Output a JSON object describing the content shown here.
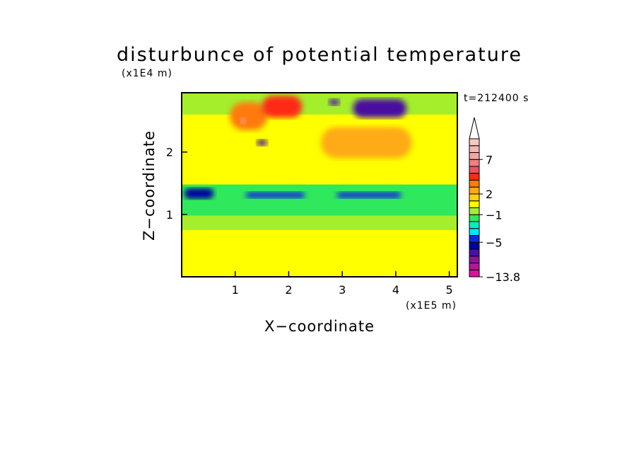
{
  "chart_data": {
    "type": "heatmap",
    "title": "disturbunce of potential temperature",
    "xlabel": "X−coordinate",
    "ylabel": "Z−coordinate",
    "x_unit": "(x1E5 m)",
    "y_unit": "(x1E4 m)",
    "time_label": "t=212400 s",
    "xlim": [
      0,
      5.15
    ],
    "ylim": [
      0,
      2.95
    ],
    "x_ticks": [
      {
        "value": 1,
        "label": "1"
      },
      {
        "value": 2,
        "label": "2"
      },
      {
        "value": 3,
        "label": "3"
      },
      {
        "value": 4,
        "label": "4"
      },
      {
        "value": 5,
        "label": "5"
      }
    ],
    "y_ticks": [
      {
        "value": 1,
        "label": "1"
      },
      {
        "value": 2,
        "label": "2"
      }
    ],
    "colorbar": {
      "levels": [
        -13.8,
        -11,
        -9,
        -7,
        -6,
        -5,
        -4,
        -3,
        -2,
        -1,
        0,
        1,
        2,
        3,
        4,
        5,
        6,
        7,
        8,
        9,
        10
      ],
      "colors": [
        "#e0109e",
        "#b5169a",
        "#8c1696",
        "#4a10a0",
        "#0000a0",
        "#0c2cdb",
        "#00e6ff",
        "#00f0c0",
        "#30e85c",
        "#a4ee2c",
        "#ffff00",
        "#ffd20a",
        "#ffaa14",
        "#ff7a0a",
        "#ff2a14",
        "#ee5060",
        "#f08080",
        "#f4a4a4",
        "#f6b4b4",
        "#f8c8c0"
      ],
      "extend": "max",
      "tick_labels": [
        {
          "value": 7,
          "label": "7"
        },
        {
          "value": 2,
          "label": "2"
        },
        {
          "value": -1,
          "label": "−1"
        },
        {
          "value": -5,
          "label": "−5"
        },
        {
          "value": -13.8,
          "label": "−13.8"
        }
      ]
    },
    "field_features": [
      {
        "x": [
          0,
          5.15
        ],
        "z": [
          0,
          0.75
        ],
        "value": 0.5
      },
      {
        "x": [
          0,
          5.15
        ],
        "z": [
          0.75,
          0.98
        ],
        "value": -0.5
      },
      {
        "x": [
          0,
          5.15
        ],
        "z": [
          0.98,
          1.48
        ],
        "value": -1.5
      },
      {
        "x": [
          0.05,
          0.6
        ],
        "z": [
          1.25,
          1.42
        ],
        "value": -5.5
      },
      {
        "x": [
          2.9,
          4.1
        ],
        "z": [
          1.26,
          1.36
        ],
        "value": -4.5
      },
      {
        "x": [
          1.2,
          2.3
        ],
        "z": [
          1.26,
          1.36
        ],
        "value": -4.5
      },
      {
        "x": [
          0,
          5.15
        ],
        "z": [
          1.48,
          2.6
        ],
        "value": 0.5
      },
      {
        "x": [
          0,
          5.15
        ],
        "z": [
          2.6,
          2.95
        ],
        "value": -0.5
      },
      {
        "x": [
          0.9,
          1.6
        ],
        "z": [
          2.35,
          2.8
        ],
        "value": 3.5
      },
      {
        "x": [
          1.5,
          2.25
        ],
        "z": [
          2.55,
          2.9
        ],
        "value": 4.5
      },
      {
        "x": [
          1.1,
          1.2
        ],
        "z": [
          2.45,
          2.55
        ],
        "value": 7.5
      },
      {
        "x": [
          3.2,
          4.2
        ],
        "z": [
          2.55,
          2.85
        ],
        "value": -6.5
      },
      {
        "x": [
          2.75,
          2.95
        ],
        "z": [
          2.75,
          2.85
        ],
        "value": -6.5
      },
      {
        "x": [
          1.4,
          1.6
        ],
        "z": [
          2.1,
          2.2
        ],
        "value": -6.5
      },
      {
        "x": [
          2.6,
          4.3
        ],
        "z": [
          1.9,
          2.4
        ],
        "value": 2.5
      }
    ]
  }
}
